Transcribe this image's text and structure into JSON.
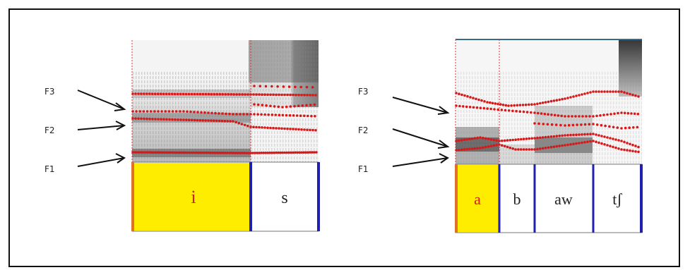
{
  "panels": [
    {
      "id": "left",
      "formant_labels": [
        "F3",
        "F2",
        "F1"
      ],
      "segments": [
        {
          "label": "i",
          "highlight": true
        },
        {
          "label": "s",
          "highlight": false
        }
      ]
    },
    {
      "id": "right",
      "formant_labels": [
        "F3",
        "F2",
        "F1"
      ],
      "segments": [
        {
          "label": "a",
          "highlight": true
        },
        {
          "label": "b",
          "highlight": false
        },
        {
          "label": "aw",
          "highlight": false
        },
        {
          "label": "tʃ",
          "highlight": false
        }
      ]
    }
  ],
  "colors": {
    "highlight_fill": "#ffed00",
    "highlight_text": "#d02010",
    "boundary": "#2020b0",
    "formant_dot": "#d81818",
    "cursor_line": "#e03030"
  }
}
